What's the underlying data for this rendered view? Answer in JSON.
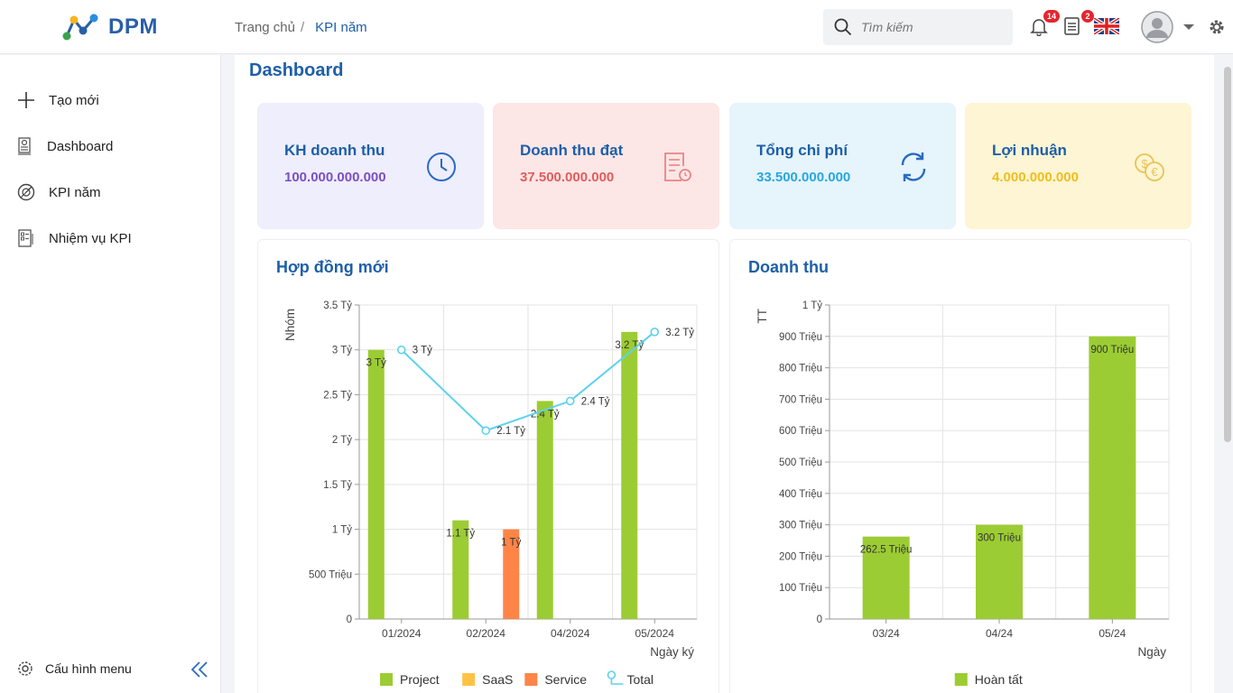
{
  "header": {
    "logo_text": "DPM",
    "breadcrumb": [
      "Trang chủ",
      "KPI năm"
    ],
    "breadcrumb_sep": "/",
    "search_placeholder": "Tìm kiếm",
    "notifications_count": "14",
    "tasks_count": "2",
    "icons": [
      "search-icon",
      "bell-icon",
      "document-icon",
      "uk-flag-icon",
      "avatar",
      "gear-icon"
    ]
  },
  "sidebar": {
    "items": [
      {
        "label": "Tạo mới",
        "icon": "plus-icon"
      },
      {
        "label": "Dashboard",
        "icon": "dashboard-icon"
      },
      {
        "label": "KPI năm",
        "icon": "kpi-icon"
      },
      {
        "label": "Nhiệm vụ KPI",
        "icon": "task-icon"
      }
    ],
    "config_label": "Cấu hình menu"
  },
  "main": {
    "title": "Dashboard",
    "cards": [
      {
        "label": "KH doanh thu",
        "value": "100.000.000.000",
        "bg": "#eeeefc",
        "color": "#7b4fc4",
        "icon": "clock-icon"
      },
      {
        "label": "Doanh thu đạt",
        "value": "37.500.000.000",
        "bg": "#fde6e6",
        "color": "#e25b5b",
        "icon": "report-icon"
      },
      {
        "label": "Tổng chi phí",
        "value": "33.500.000.000",
        "bg": "#e6f4fc",
        "color": "#27a7e0",
        "icon": "refresh-icon"
      },
      {
        "label": "Lợi nhuận",
        "value": "4.000.000.000",
        "bg": "#fdf5d3",
        "color": "#efbe1c",
        "icon": "currency-icon"
      }
    ]
  },
  "chart_data": [
    {
      "type": "bar",
      "title": "Hợp đồng mới",
      "ylabel": "Nhóm",
      "xlabel": "Ngày ký",
      "categories": [
        "01/2024",
        "02/2024",
        "04/2024",
        "05/2024"
      ],
      "ylim": [
        0,
        3.5
      ],
      "yticks": [
        0,
        0.5,
        1,
        1.5,
        2,
        2.5,
        3,
        3.5
      ],
      "yticklabels": [
        "0",
        "500 Triệu",
        "1 Tỷ",
        "1.5 Tỷ",
        "2 Tỷ",
        "2.5 Tỷ",
        "3 Tỷ",
        "3.5 Tỷ"
      ],
      "series": [
        {
          "name": "Project",
          "color": "#9ccc33",
          "values": [
            3,
            1.1,
            2.43,
            3.2
          ],
          "labels": [
            "3 Tỷ",
            "1.1 Tỷ",
            "2.4 Tỷ",
            "3.2 Tỷ"
          ]
        },
        {
          "name": "SaaS",
          "color": "#ffc247",
          "values": [
            0,
            0,
            0,
            0
          ],
          "labels": [
            "",
            "",
            "",
            ""
          ]
        },
        {
          "name": "Service",
          "color": "#ff8447",
          "values": [
            0,
            1,
            0,
            0
          ],
          "labels": [
            "",
            "1 Tỷ",
            "",
            ""
          ]
        },
        {
          "name": "Total",
          "color": "#5dd2ee",
          "type": "line",
          "values": [
            3,
            2.1,
            2.43,
            3.2
          ],
          "labels": [
            "3 Tỷ",
            "2.1 Tỷ",
            "2.4 Tỷ",
            "3.2 Tỷ"
          ]
        }
      ],
      "grid": true,
      "legend": "bottom"
    },
    {
      "type": "bar",
      "title": "Doanh thu",
      "ylabel": "TT",
      "xlabel": "Ngày",
      "categories": [
        "03/24",
        "04/24",
        "05/24"
      ],
      "ylim": [
        0,
        1000
      ],
      "yticks": [
        0,
        100,
        200,
        300,
        400,
        500,
        600,
        700,
        800,
        900,
        1000
      ],
      "yticklabels": [
        "0",
        "100 Triệu",
        "200 Triệu",
        "300 Triệu",
        "400 Triệu",
        "500 Triệu",
        "600 Triệu",
        "700 Triệu",
        "800 Triệu",
        "900 Triệu",
        "1 Tỷ"
      ],
      "series": [
        {
          "name": "Hoàn tất",
          "color": "#9ccc33",
          "values": [
            262.5,
            300,
            900
          ],
          "labels": [
            "262.5 Triệu",
            "300 Triệu",
            "900 Triệu"
          ]
        }
      ],
      "grid": true,
      "legend": "bottom"
    }
  ]
}
